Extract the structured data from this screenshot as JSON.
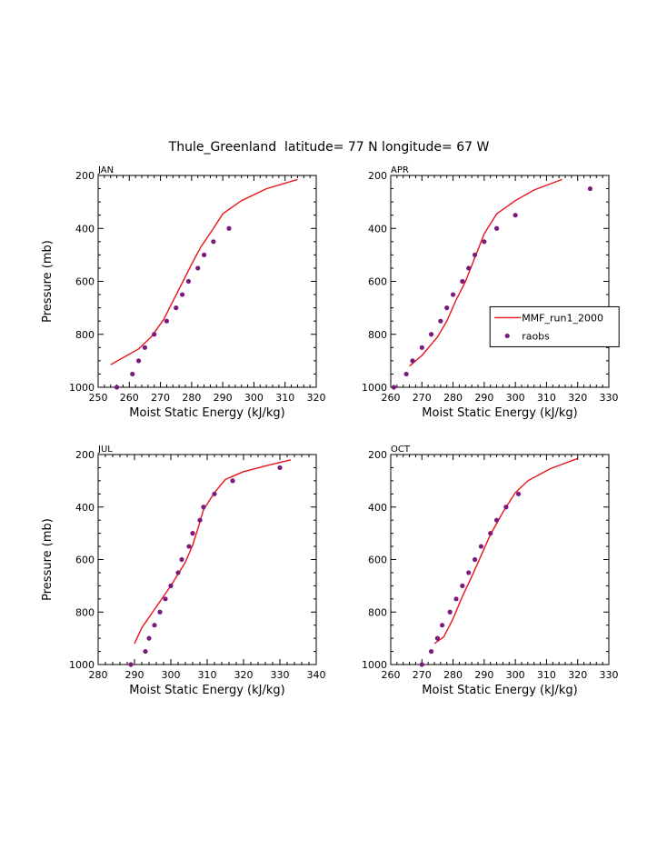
{
  "figure": {
    "title": "Thule_Greenland  latitude= 77 N longitude= 67 W"
  },
  "colors": {
    "model_line": "#e8141b",
    "obs_marker": "#7b1a7e"
  },
  "chart_data": [
    {
      "type": "line",
      "panel_label": "JAN",
      "xlabel": "Moist Static Energy (kJ/kg)",
      "ylabel": "Pressure (mb)",
      "xlim": [
        250,
        320
      ],
      "ylim": [
        1000,
        200
      ],
      "xticks": [
        250,
        260,
        270,
        280,
        290,
        300,
        310,
        320
      ],
      "yticks": [
        200,
        400,
        600,
        800,
        1000
      ],
      "series": [
        {
          "kind": "line",
          "x": [
            254,
            257,
            263,
            267,
            271,
            274,
            277,
            280,
            283,
            287,
            290,
            296,
            304,
            314
          ],
          "y": [
            915,
            895,
            855,
            810,
            745,
            675,
            605,
            535,
            470,
            400,
            345,
            295,
            250,
            215
          ]
        },
        {
          "kind": "scatter",
          "x": [
            256,
            261,
            263,
            265,
            268,
            272,
            275,
            277,
            279,
            282,
            284,
            287,
            292
          ],
          "y": [
            1000,
            950,
            900,
            850,
            800,
            750,
            700,
            650,
            600,
            550,
            500,
            450,
            400
          ]
        }
      ]
    },
    {
      "type": "line",
      "panel_label": "APR",
      "xlabel": "Moist Static Energy (kJ/kg)",
      "ylabel": "",
      "xlim": [
        260,
        330
      ],
      "ylim": [
        1000,
        200
      ],
      "xticks": [
        260,
        270,
        280,
        290,
        300,
        310,
        320,
        330
      ],
      "yticks": [
        200,
        400,
        600,
        800,
        1000
      ],
      "legend": {
        "position": "right",
        "entries": [
          "MMF_run1_2000",
          "raobs"
        ]
      },
      "series": [
        {
          "name": "MMF_run1_2000",
          "kind": "line",
          "x": [
            266,
            270,
            275,
            278,
            281,
            284,
            287,
            290,
            294,
            300,
            306,
            315
          ],
          "y": [
            920,
            880,
            810,
            750,
            670,
            600,
            510,
            420,
            345,
            295,
            255,
            215
          ]
        },
        {
          "name": "raobs",
          "kind": "scatter",
          "x": [
            261,
            265,
            267,
            270,
            273,
            276,
            278,
            280,
            283,
            285,
            287,
            290,
            294,
            300,
            324
          ],
          "y": [
            1000,
            950,
            900,
            850,
            800,
            750,
            700,
            650,
            600,
            550,
            500,
            450,
            400,
            350,
            250
          ]
        }
      ]
    },
    {
      "type": "line",
      "panel_label": "JUL",
      "xlabel": "Moist Static Energy (kJ/kg)",
      "ylabel": "Pressure (mb)",
      "xlim": [
        280,
        340
      ],
      "ylim": [
        1000,
        200
      ],
      "xticks": [
        280,
        290,
        300,
        310,
        320,
        330,
        340
      ],
      "yticks": [
        200,
        400,
        600,
        800,
        1000
      ],
      "series": [
        {
          "kind": "line",
          "x": [
            290,
            292,
            296,
            300,
            304,
            306,
            307.5,
            309,
            312,
            315,
            320,
            327,
            333
          ],
          "y": [
            920,
            860,
            780,
            700,
            610,
            545,
            480,
            410,
            345,
            295,
            265,
            240,
            220
          ]
        },
        {
          "kind": "scatter",
          "x": [
            289,
            293,
            294,
            295.5,
            297,
            298.5,
            300,
            302,
            303,
            305,
            306,
            308,
            309,
            312,
            317,
            330
          ],
          "y": [
            1000,
            950,
            900,
            850,
            800,
            750,
            700,
            650,
            600,
            550,
            500,
            450,
            400,
            350,
            300,
            250
          ]
        }
      ]
    },
    {
      "type": "line",
      "panel_label": "OCT",
      "xlabel": "Moist Static Energy (kJ/kg)",
      "ylabel": "",
      "xlim": [
        260,
        330
      ],
      "ylim": [
        1000,
        200
      ],
      "xticks": [
        260,
        270,
        280,
        290,
        300,
        310,
        320,
        330
      ],
      "yticks": [
        200,
        400,
        600,
        800,
        1000
      ],
      "series": [
        {
          "kind": "line",
          "x": [
            274,
            277,
            280,
            283,
            286,
            289,
            292,
            296,
            300,
            304,
            311,
            320
          ],
          "y": [
            920,
            895,
            825,
            740,
            665,
            585,
            505,
            420,
            345,
            300,
            255,
            215
          ]
        },
        {
          "kind": "scatter",
          "x": [
            270,
            273,
            275,
            276.5,
            279,
            281,
            283,
            285,
            287,
            289,
            292,
            294,
            297,
            301
          ],
          "y": [
            1000,
            950,
            900,
            850,
            800,
            750,
            700,
            650,
            600,
            550,
            500,
            450,
            400,
            350
          ]
        }
      ]
    }
  ]
}
